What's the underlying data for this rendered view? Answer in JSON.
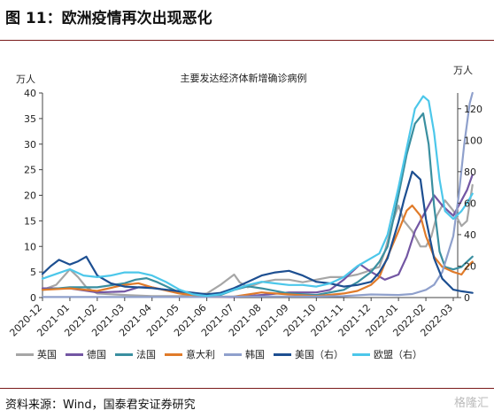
{
  "figure": {
    "title": "图 11：欧洲疫情再次出现恶化",
    "source": "资料来源：Wind，国泰君安证券研究",
    "watermark": "格隆汇"
  },
  "chart_data": {
    "type": "line",
    "title": "主要发达经济体新增确诊病例",
    "left_axis_unit": "万人",
    "right_axis_unit": "万人",
    "left_ylim": [
      0,
      40
    ],
    "right_ylim": [
      0,
      130
    ],
    "left_ticks": [
      "0",
      "5",
      "10",
      "15",
      "20",
      "25",
      "30",
      "35",
      "40"
    ],
    "right_ticks": [
      "0",
      "20",
      "40",
      "60",
      "80",
      "100",
      "120"
    ],
    "x_ticks": [
      "2020-12",
      "2021-01",
      "2021-02",
      "2021-03",
      "2021-04",
      "2021-05",
      "2021-06",
      "2021-07",
      "2021-08",
      "2021-09",
      "2021-10",
      "2021-11",
      "2021-12",
      "2022-01",
      "2022-02",
      "2022-03"
    ],
    "grid": false,
    "legend_position": "bottom",
    "series": [
      {
        "name": "英国",
        "axis": "left",
        "color": "#a6a6a6",
        "x": [
          0,
          0.5,
          1,
          1.3,
          1.6,
          2,
          3,
          4,
          5,
          6,
          6.5,
          7,
          7.2,
          7.5,
          8,
          8.5,
          9,
          9.5,
          10,
          10.5,
          11,
          11.5,
          11.8,
          12,
          12.3,
          12.5,
          12.8,
          13,
          13.2,
          13.5,
          13.8,
          14,
          14.2,
          14.4,
          14.7,
          15,
          15.3,
          15.5,
          15.7
        ],
        "y": [
          1.5,
          2.5,
          5.5,
          4,
          2,
          0.8,
          0.5,
          0.3,
          0.3,
          0.8,
          2.5,
          4.5,
          3,
          2,
          3,
          3.5,
          3.5,
          3,
          3.5,
          4,
          4,
          4.5,
          5,
          5.5,
          6,
          9,
          15,
          18,
          15,
          13,
          10,
          10,
          12,
          16,
          19,
          17,
          14,
          15,
          22
        ]
      },
      {
        "name": "德国",
        "axis": "left",
        "color": "#7356a3",
        "x": [
          0,
          1,
          2,
          3,
          3.5,
          4,
          5,
          6,
          7,
          8,
          9,
          10,
          10.5,
          11,
          11.3,
          11.6,
          12,
          12.5,
          13,
          13.3,
          13.6,
          14,
          14.3,
          14.6,
          15,
          15.3,
          15.5,
          15.7
        ],
        "y": [
          1.8,
          1.8,
          1,
          1.2,
          2,
          2,
          0.9,
          0.1,
          0.1,
          0.5,
          1,
          1,
          1.5,
          3.5,
          5,
          6.5,
          5,
          3.5,
          4.5,
          8,
          13,
          17,
          20,
          18,
          16,
          19,
          21,
          24
        ]
      },
      {
        "name": "法国",
        "axis": "left",
        "color": "#3a8fa0",
        "x": [
          0,
          1,
          2,
          3,
          3.4,
          3.8,
          4.2,
          5,
          5.5,
          6,
          6.5,
          7,
          7.5,
          8,
          9,
          10,
          11,
          11.5,
          12,
          12.3,
          12.6,
          13,
          13.3,
          13.6,
          13.9,
          14.1,
          14.3,
          14.5,
          14.7,
          15,
          15.3,
          15.5,
          15.7
        ],
        "y": [
          1.5,
          2,
          2,
          2.8,
          3.5,
          3.8,
          3,
          1,
          0.6,
          0.2,
          0.5,
          1.5,
          2.2,
          1.8,
          0.8,
          0.5,
          1.5,
          3,
          5,
          7,
          10,
          20,
          28,
          34,
          36,
          30,
          18,
          9,
          6,
          5.5,
          6,
          7,
          8
        ]
      },
      {
        "name": "意大利",
        "axis": "left",
        "color": "#e07b2a",
        "x": [
          0,
          1,
          2,
          3,
          3.5,
          4,
          5,
          6,
          7,
          8,
          9,
          10,
          11,
          11.5,
          12,
          12.3,
          12.6,
          13,
          13.3,
          13.5,
          13.8,
          14,
          14.3,
          14.6,
          15,
          15.3,
          15.5,
          15.7
        ],
        "y": [
          1.5,
          1.8,
          1.3,
          2.5,
          2.8,
          2,
          0.8,
          0.1,
          0.2,
          1,
          0.6,
          0.3,
          0.8,
          1.3,
          2.5,
          4,
          8,
          13,
          17,
          18,
          16,
          12,
          8,
          6,
          5,
          4.5,
          6,
          7
        ]
      },
      {
        "name": "韩国",
        "axis": "left",
        "color": "#8fa0cc",
        "x": [
          0,
          2,
          4,
          6,
          7,
          8,
          9,
          10,
          11,
          12,
          13,
          13.5,
          14,
          14.3,
          14.6,
          15,
          15.2,
          15.4,
          15.6,
          15.7
        ],
        "y": [
          0.1,
          0.1,
          0.1,
          0.1,
          0.2,
          0.2,
          0.2,
          0.2,
          0.3,
          0.6,
          0.5,
          0.7,
          1.5,
          2.5,
          5,
          12,
          20,
          30,
          38,
          40
        ]
      },
      {
        "name": "美国（右）",
        "axis": "right",
        "color": "#1d4f91",
        "x": [
          0,
          0.3,
          0.6,
          1,
          1.3,
          1.6,
          2,
          2.5,
          3,
          4,
          5,
          6,
          6.5,
          7,
          7.5,
          8,
          8.5,
          9,
          9.5,
          10,
          10.5,
          11,
          11.5,
          12,
          12.3,
          12.6,
          13,
          13.2,
          13.5,
          13.8,
          14,
          14.3,
          14.6,
          15,
          15.3,
          15.7
        ],
        "y": [
          15,
          20,
          24,
          21,
          23,
          26,
          14,
          9,
          7,
          6,
          4,
          2,
          3,
          6,
          10,
          14,
          16,
          17,
          14,
          10,
          9,
          7,
          8,
          10,
          16,
          25,
          48,
          62,
          80,
          75,
          50,
          25,
          12,
          5,
          4,
          3
        ]
      },
      {
        "name": "欧盟（右）",
        "axis": "right",
        "color": "#4cc7ea",
        "x": [
          0,
          0.5,
          1,
          1.5,
          2,
          2.5,
          3,
          3.5,
          4,
          4.5,
          5,
          5.5,
          6,
          6.5,
          7,
          7.5,
          8,
          8.5,
          9,
          9.5,
          10,
          10.5,
          11,
          11.5,
          12,
          12.3,
          12.6,
          13,
          13.3,
          13.6,
          13.9,
          14.1,
          14.3,
          14.5,
          14.7,
          15,
          15.3,
          15.5,
          15.7
        ],
        "y": [
          12,
          15,
          18,
          14,
          13,
          14,
          16,
          16,
          14,
          10,
          5,
          2,
          1,
          2,
          5,
          8,
          10,
          9,
          8,
          8,
          7,
          9,
          13,
          20,
          25,
          28,
          40,
          70,
          95,
          120,
          128,
          125,
          105,
          75,
          55,
          50,
          55,
          60,
          66
        ]
      }
    ]
  }
}
